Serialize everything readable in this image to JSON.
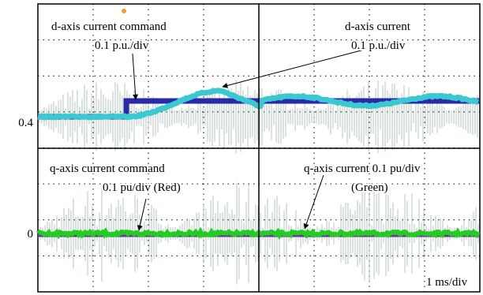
{
  "screen": {
    "levels": {
      "d_level": "0.4",
      "q_level": "0"
    },
    "annotations": {
      "d_command": [
        "d-axis current command",
        "0.1 p.u./div"
      ],
      "d_current": [
        "d-axis current",
        "0.1 p.u./div"
      ],
      "q_command": [
        "q-axis current command",
        "0.1 pu/div (Red)"
      ],
      "q_current": [
        "q-axis current 0.1 pu/div",
        "(Green)"
      ]
    },
    "timebase": "1 ms/div"
  }
}
